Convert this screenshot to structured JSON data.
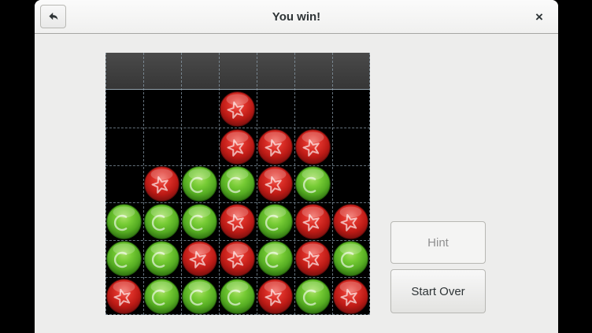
{
  "header": {
    "title": "You win!",
    "close_glyph": "×"
  },
  "icons": {
    "back": "undo-arrow",
    "close": "x-cross",
    "red_piece": "star-outline",
    "green_piece": "circle-outline"
  },
  "actions": {
    "hint_label": "Hint",
    "hint_enabled": false,
    "start_over_label": "Start Over"
  },
  "board": {
    "columns": 7,
    "rows_total": 7,
    "top_row_is_drop_zone": true,
    "legend": {
      "R": "red star piece",
      "G": "green circle piece",
      "": "empty"
    },
    "rows": [
      [
        "",
        "",
        "",
        "",
        "",
        "",
        ""
      ],
      [
        "",
        "",
        "",
        "R",
        "",
        "",
        ""
      ],
      [
        "",
        "",
        "",
        "R",
        "R",
        "R",
        ""
      ],
      [
        "",
        "R",
        "G",
        "G",
        "R",
        "G",
        ""
      ],
      [
        "G",
        "G",
        "G",
        "R",
        "G",
        "R",
        "R"
      ],
      [
        "G",
        "G",
        "R",
        "R",
        "G",
        "R",
        "G"
      ],
      [
        "R",
        "G",
        "G",
        "G",
        "R",
        "G",
        "R"
      ]
    ]
  },
  "colors": {
    "page-bg": "#000000",
    "window-bg": "#ededec",
    "board-bg": "#000000",
    "grid-line": "#8fa2b0",
    "red-piece": "#cc2220",
    "green-piece": "#5bb526",
    "title-text": "#2e3436",
    "btn-disabled-text": "#8f8f8f"
  }
}
